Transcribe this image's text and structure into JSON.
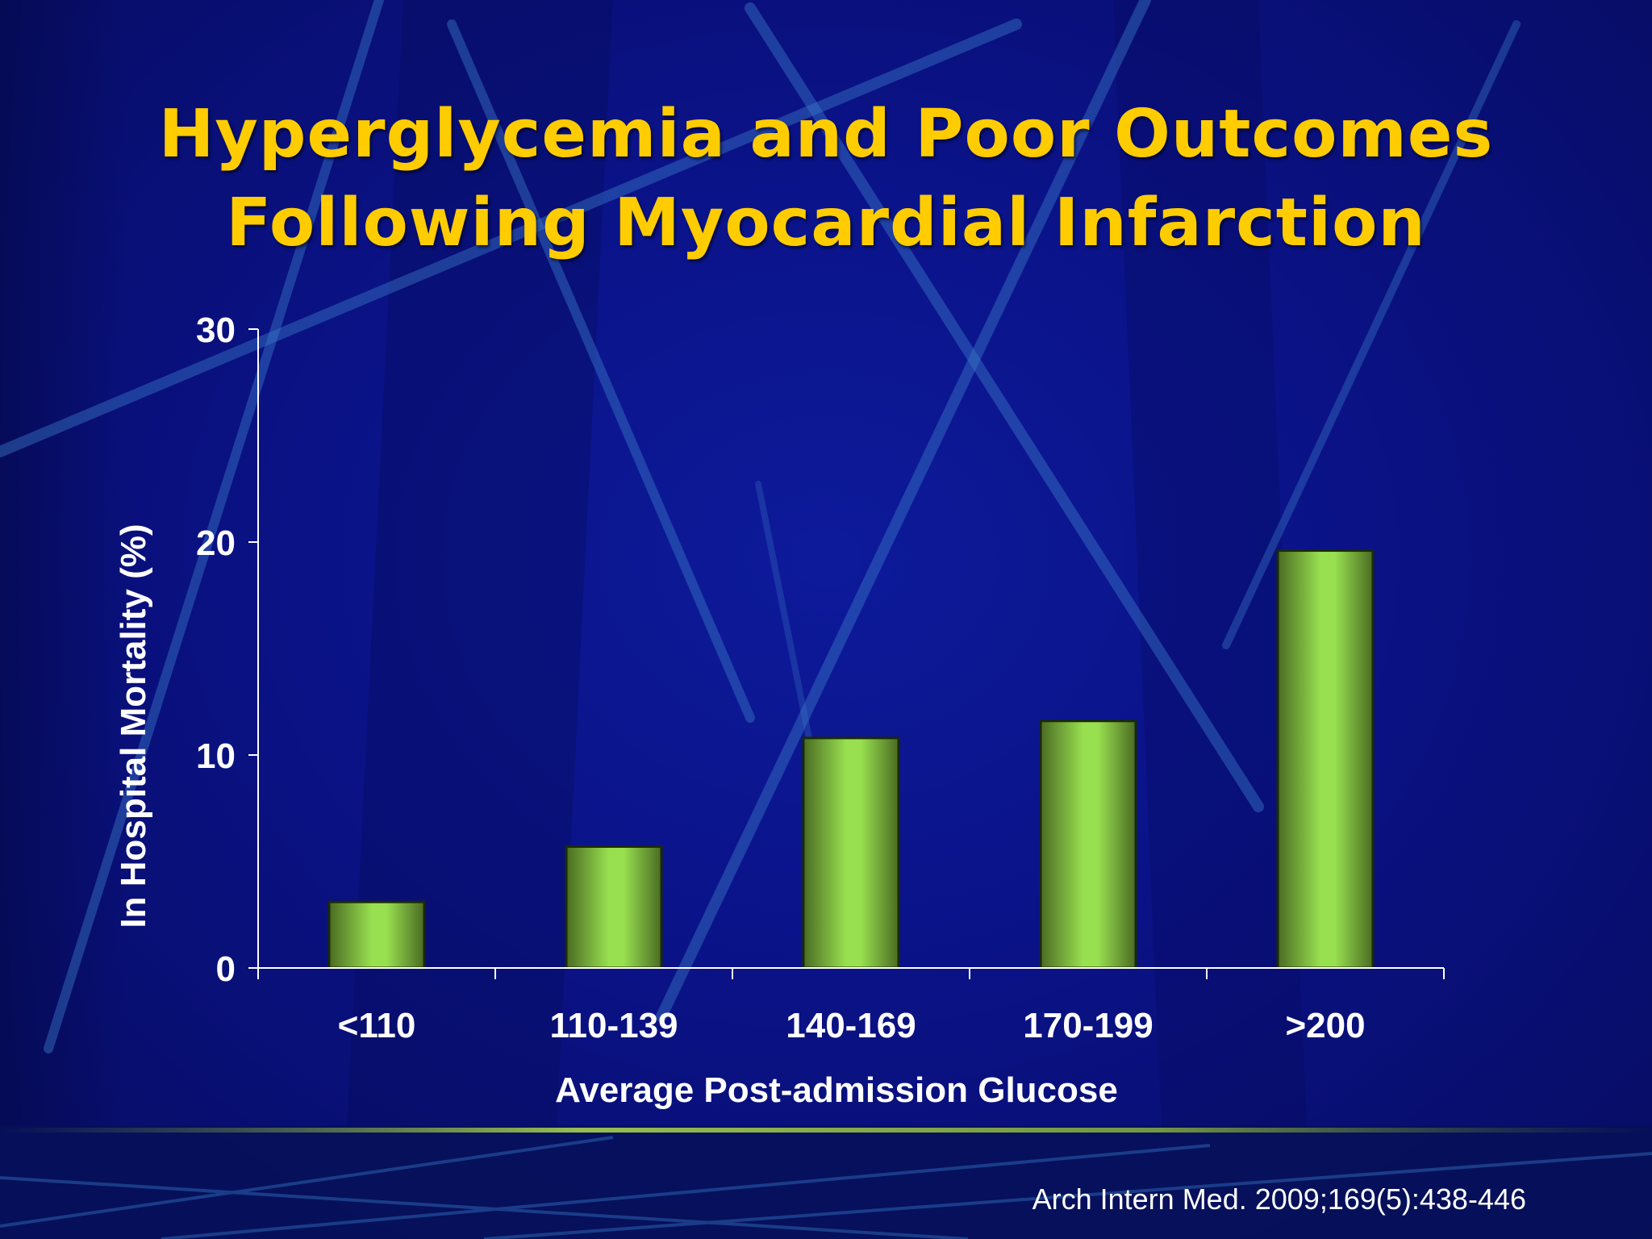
{
  "slide": {
    "title_line1": "Hyperglycemia and Poor Outcomes",
    "title_line2": "Following Myocardial Infarction",
    "citation": "Arch Intern Med. 2009;169(5):438-446"
  },
  "colors": {
    "background": "#0a1286",
    "title": "#ffcc00",
    "bar_light": "#99e050",
    "bar_dark": "#4a6b22",
    "axis": "#ffffff",
    "text": "#ffffff"
  },
  "chart_data": {
    "type": "bar",
    "categories": [
      "<110",
      "110-139",
      "140-169",
      "170-199",
      ">200"
    ],
    "values": [
      3.1,
      5.7,
      10.8,
      11.6,
      19.6
    ],
    "xlabel": "Average Post-admission Glucose",
    "ylabel": "In Hospital Mortality (%)",
    "ylim": [
      0,
      30
    ],
    "yticks": [
      "0",
      "10",
      "20",
      "30"
    ],
    "grid": false,
    "legend": "none"
  }
}
